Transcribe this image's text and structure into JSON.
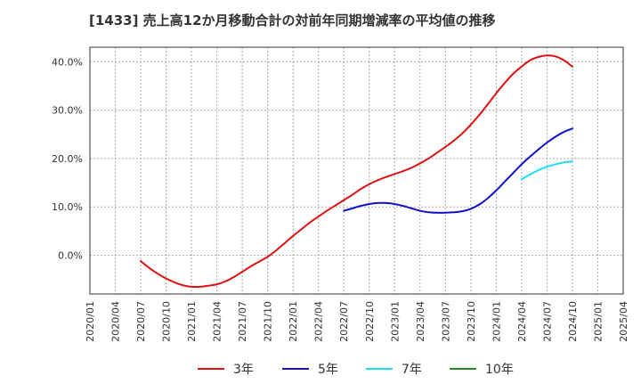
{
  "chart_data": {
    "type": "line",
    "title": "[1433]  売上高12か月移動合計の対前年同期増減率の平均値の推移",
    "xlabel": "",
    "ylabel": "",
    "ylim": [
      -8,
      43
    ],
    "y_ticks": [
      {
        "value": 0,
        "label": "0.0%"
      },
      {
        "value": 10,
        "label": "10.0%"
      },
      {
        "value": 20,
        "label": "20.0%"
      },
      {
        "value": 30,
        "label": "30.0%"
      },
      {
        "value": 40,
        "label": "40.0%"
      }
    ],
    "x_ticks": [
      "2020/01",
      "2020/04",
      "2020/07",
      "2020/10",
      "2021/01",
      "2021/04",
      "2021/07",
      "2021/10",
      "2022/01",
      "2022/04",
      "2022/07",
      "2022/10",
      "2023/01",
      "2023/04",
      "2023/07",
      "2023/10",
      "2024/01",
      "2024/04",
      "2024/07",
      "2024/10",
      "2025/01",
      "2025/04"
    ],
    "grid": true,
    "legend_position": "bottom",
    "series": [
      {
        "name": "3年",
        "color": "#dd1111",
        "points": [
          [
            "2020/07",
            -1.2
          ],
          [
            "2020/08",
            -2.6
          ],
          [
            "2020/09",
            -3.8
          ],
          [
            "2020/10",
            -4.8
          ],
          [
            "2020/11",
            -5.6
          ],
          [
            "2020/12",
            -6.2
          ],
          [
            "2021/01",
            -6.5
          ],
          [
            "2021/02",
            -6.5
          ],
          [
            "2021/03",
            -6.3
          ],
          [
            "2021/04",
            -6.0
          ],
          [
            "2021/05",
            -5.4
          ],
          [
            "2021/06",
            -4.5
          ],
          [
            "2021/07",
            -3.4
          ],
          [
            "2021/08",
            -2.3
          ],
          [
            "2021/09",
            -1.3
          ],
          [
            "2021/10",
            -0.3
          ],
          [
            "2021/11",
            1.0
          ],
          [
            "2021/12",
            2.5
          ],
          [
            "2022/01",
            4.0
          ],
          [
            "2022/02",
            5.4
          ],
          [
            "2022/03",
            6.8
          ],
          [
            "2022/04",
            8.0
          ],
          [
            "2022/05",
            9.2
          ],
          [
            "2022/06",
            10.3
          ],
          [
            "2022/07",
            11.4
          ],
          [
            "2022/08",
            12.5
          ],
          [
            "2022/09",
            13.7
          ],
          [
            "2022/10",
            14.7
          ],
          [
            "2022/11",
            15.5
          ],
          [
            "2022/12",
            16.2
          ],
          [
            "2023/01",
            16.8
          ],
          [
            "2023/02",
            17.4
          ],
          [
            "2023/03",
            18.1
          ],
          [
            "2023/04",
            19.0
          ],
          [
            "2023/05",
            20.0
          ],
          [
            "2023/06",
            21.2
          ],
          [
            "2023/07",
            22.4
          ],
          [
            "2023/08",
            23.7
          ],
          [
            "2023/09",
            25.2
          ],
          [
            "2023/10",
            27.0
          ],
          [
            "2023/11",
            29.0
          ],
          [
            "2023/12",
            31.2
          ],
          [
            "2024/01",
            33.5
          ],
          [
            "2024/02",
            35.6
          ],
          [
            "2024/03",
            37.5
          ],
          [
            "2024/04",
            39.0
          ],
          [
            "2024/05",
            40.3
          ],
          [
            "2024/06",
            41.0
          ],
          [
            "2024/07",
            41.3
          ],
          [
            "2024/08",
            41.1
          ],
          [
            "2024/09",
            40.3
          ],
          [
            "2024/10",
            39.0
          ]
        ]
      },
      {
        "name": "5年",
        "color": "#1111cc",
        "points": [
          [
            "2022/07",
            9.2
          ],
          [
            "2022/08",
            9.7
          ],
          [
            "2022/09",
            10.2
          ],
          [
            "2022/10",
            10.6
          ],
          [
            "2022/11",
            10.8
          ],
          [
            "2022/12",
            10.8
          ],
          [
            "2023/01",
            10.6
          ],
          [
            "2023/02",
            10.2
          ],
          [
            "2023/03",
            9.7
          ],
          [
            "2023/04",
            9.2
          ],
          [
            "2023/05",
            8.9
          ],
          [
            "2023/06",
            8.8
          ],
          [
            "2023/07",
            8.8
          ],
          [
            "2023/08",
            8.9
          ],
          [
            "2023/09",
            9.1
          ],
          [
            "2023/10",
            9.6
          ],
          [
            "2023/11",
            10.5
          ],
          [
            "2023/12",
            11.8
          ],
          [
            "2024/01",
            13.4
          ],
          [
            "2024/02",
            15.2
          ],
          [
            "2024/03",
            17.0
          ],
          [
            "2024/04",
            18.8
          ],
          [
            "2024/05",
            20.4
          ],
          [
            "2024/06",
            21.9
          ],
          [
            "2024/07",
            23.3
          ],
          [
            "2024/08",
            24.5
          ],
          [
            "2024/09",
            25.5
          ],
          [
            "2024/10",
            26.2
          ]
        ]
      },
      {
        "name": "7年",
        "color": "#22ddee",
        "points": [
          [
            "2024/04",
            15.7
          ],
          [
            "2024/05",
            16.7
          ],
          [
            "2024/06",
            17.6
          ],
          [
            "2024/07",
            18.3
          ],
          [
            "2024/08",
            18.8
          ],
          [
            "2024/09",
            19.2
          ],
          [
            "2024/10",
            19.4
          ]
        ]
      },
      {
        "name": "10年",
        "color": "#228b22",
        "points": []
      }
    ]
  }
}
